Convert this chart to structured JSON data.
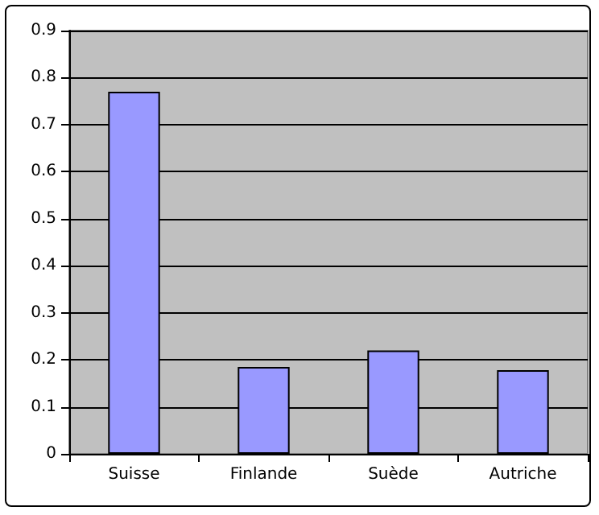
{
  "chart_data": {
    "type": "bar",
    "categories": [
      "Suisse",
      "Finlande",
      "Suède",
      "Autriche"
    ],
    "values": [
      0.77,
      0.185,
      0.22,
      0.178
    ],
    "color": "#9999ff",
    "ylim": [
      0,
      0.9
    ],
    "yticks": [
      0,
      0.1,
      0.2,
      0.3,
      0.4,
      0.5,
      0.6,
      0.7,
      0.8,
      0.9
    ],
    "grid": "y"
  }
}
